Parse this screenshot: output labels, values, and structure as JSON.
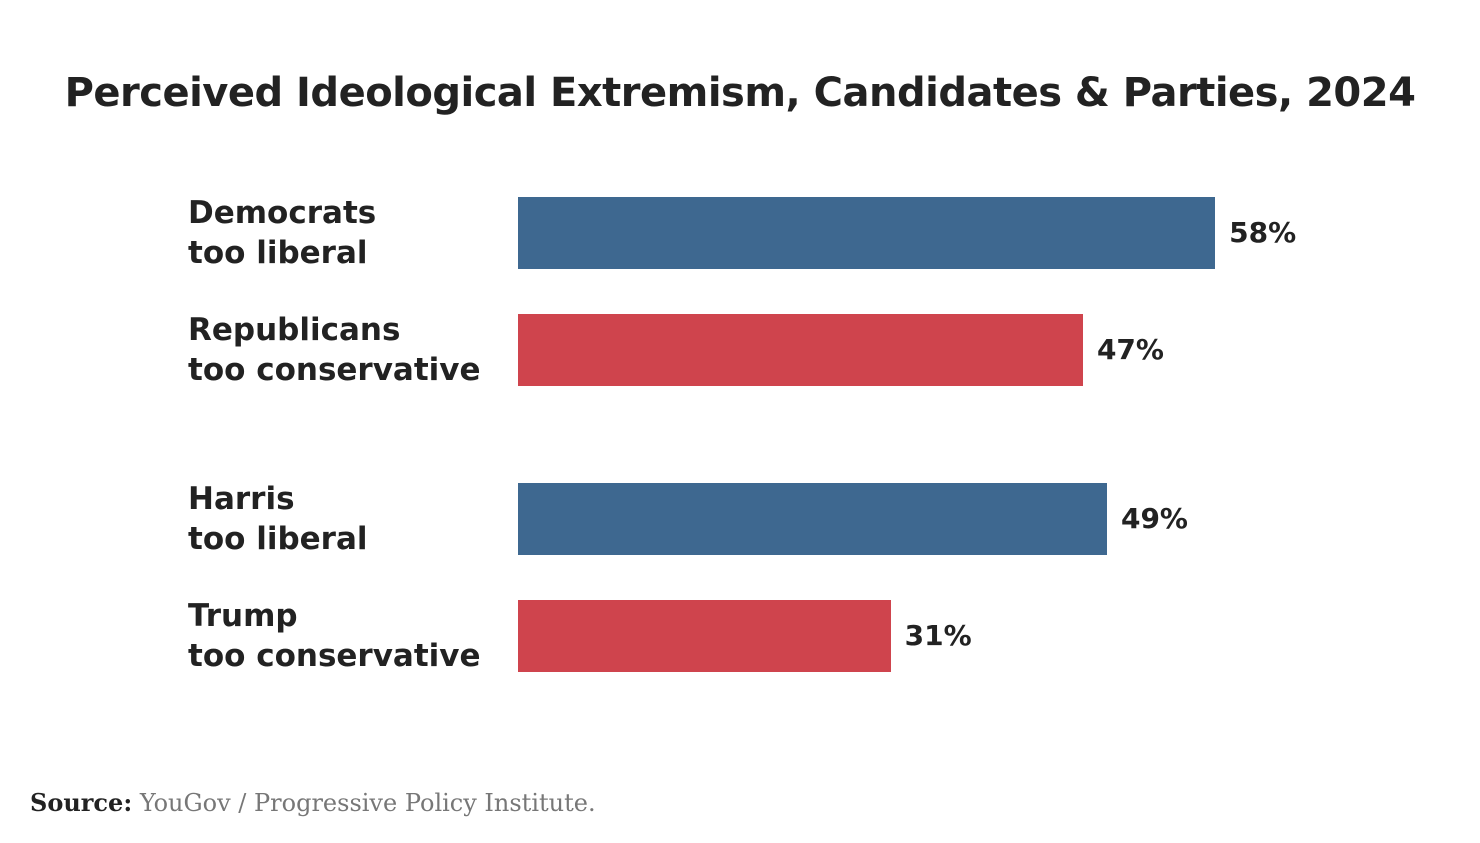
{
  "chart_data": {
    "type": "bar",
    "orientation": "horizontal",
    "title": "Perceived Ideological Extremism, Candidates & Parties, 2024",
    "categories": [
      [
        "Democrats",
        "too liberal"
      ],
      [
        "Republicans",
        "too conservative"
      ],
      [
        "Harris",
        "too liberal"
      ],
      [
        "Trump",
        "too conservative"
      ]
    ],
    "values": [
      58,
      47,
      49,
      31
    ],
    "value_labels": [
      "58%",
      "47%",
      "49%",
      "31%"
    ],
    "colors": [
      "#3e6890",
      "#cf444d",
      "#3e6890",
      "#cf444d"
    ],
    "xlim": [
      0,
      100
    ],
    "grid": false,
    "source_label": "Source:",
    "source_text": "YouGov / Progressive Policy Institute."
  }
}
